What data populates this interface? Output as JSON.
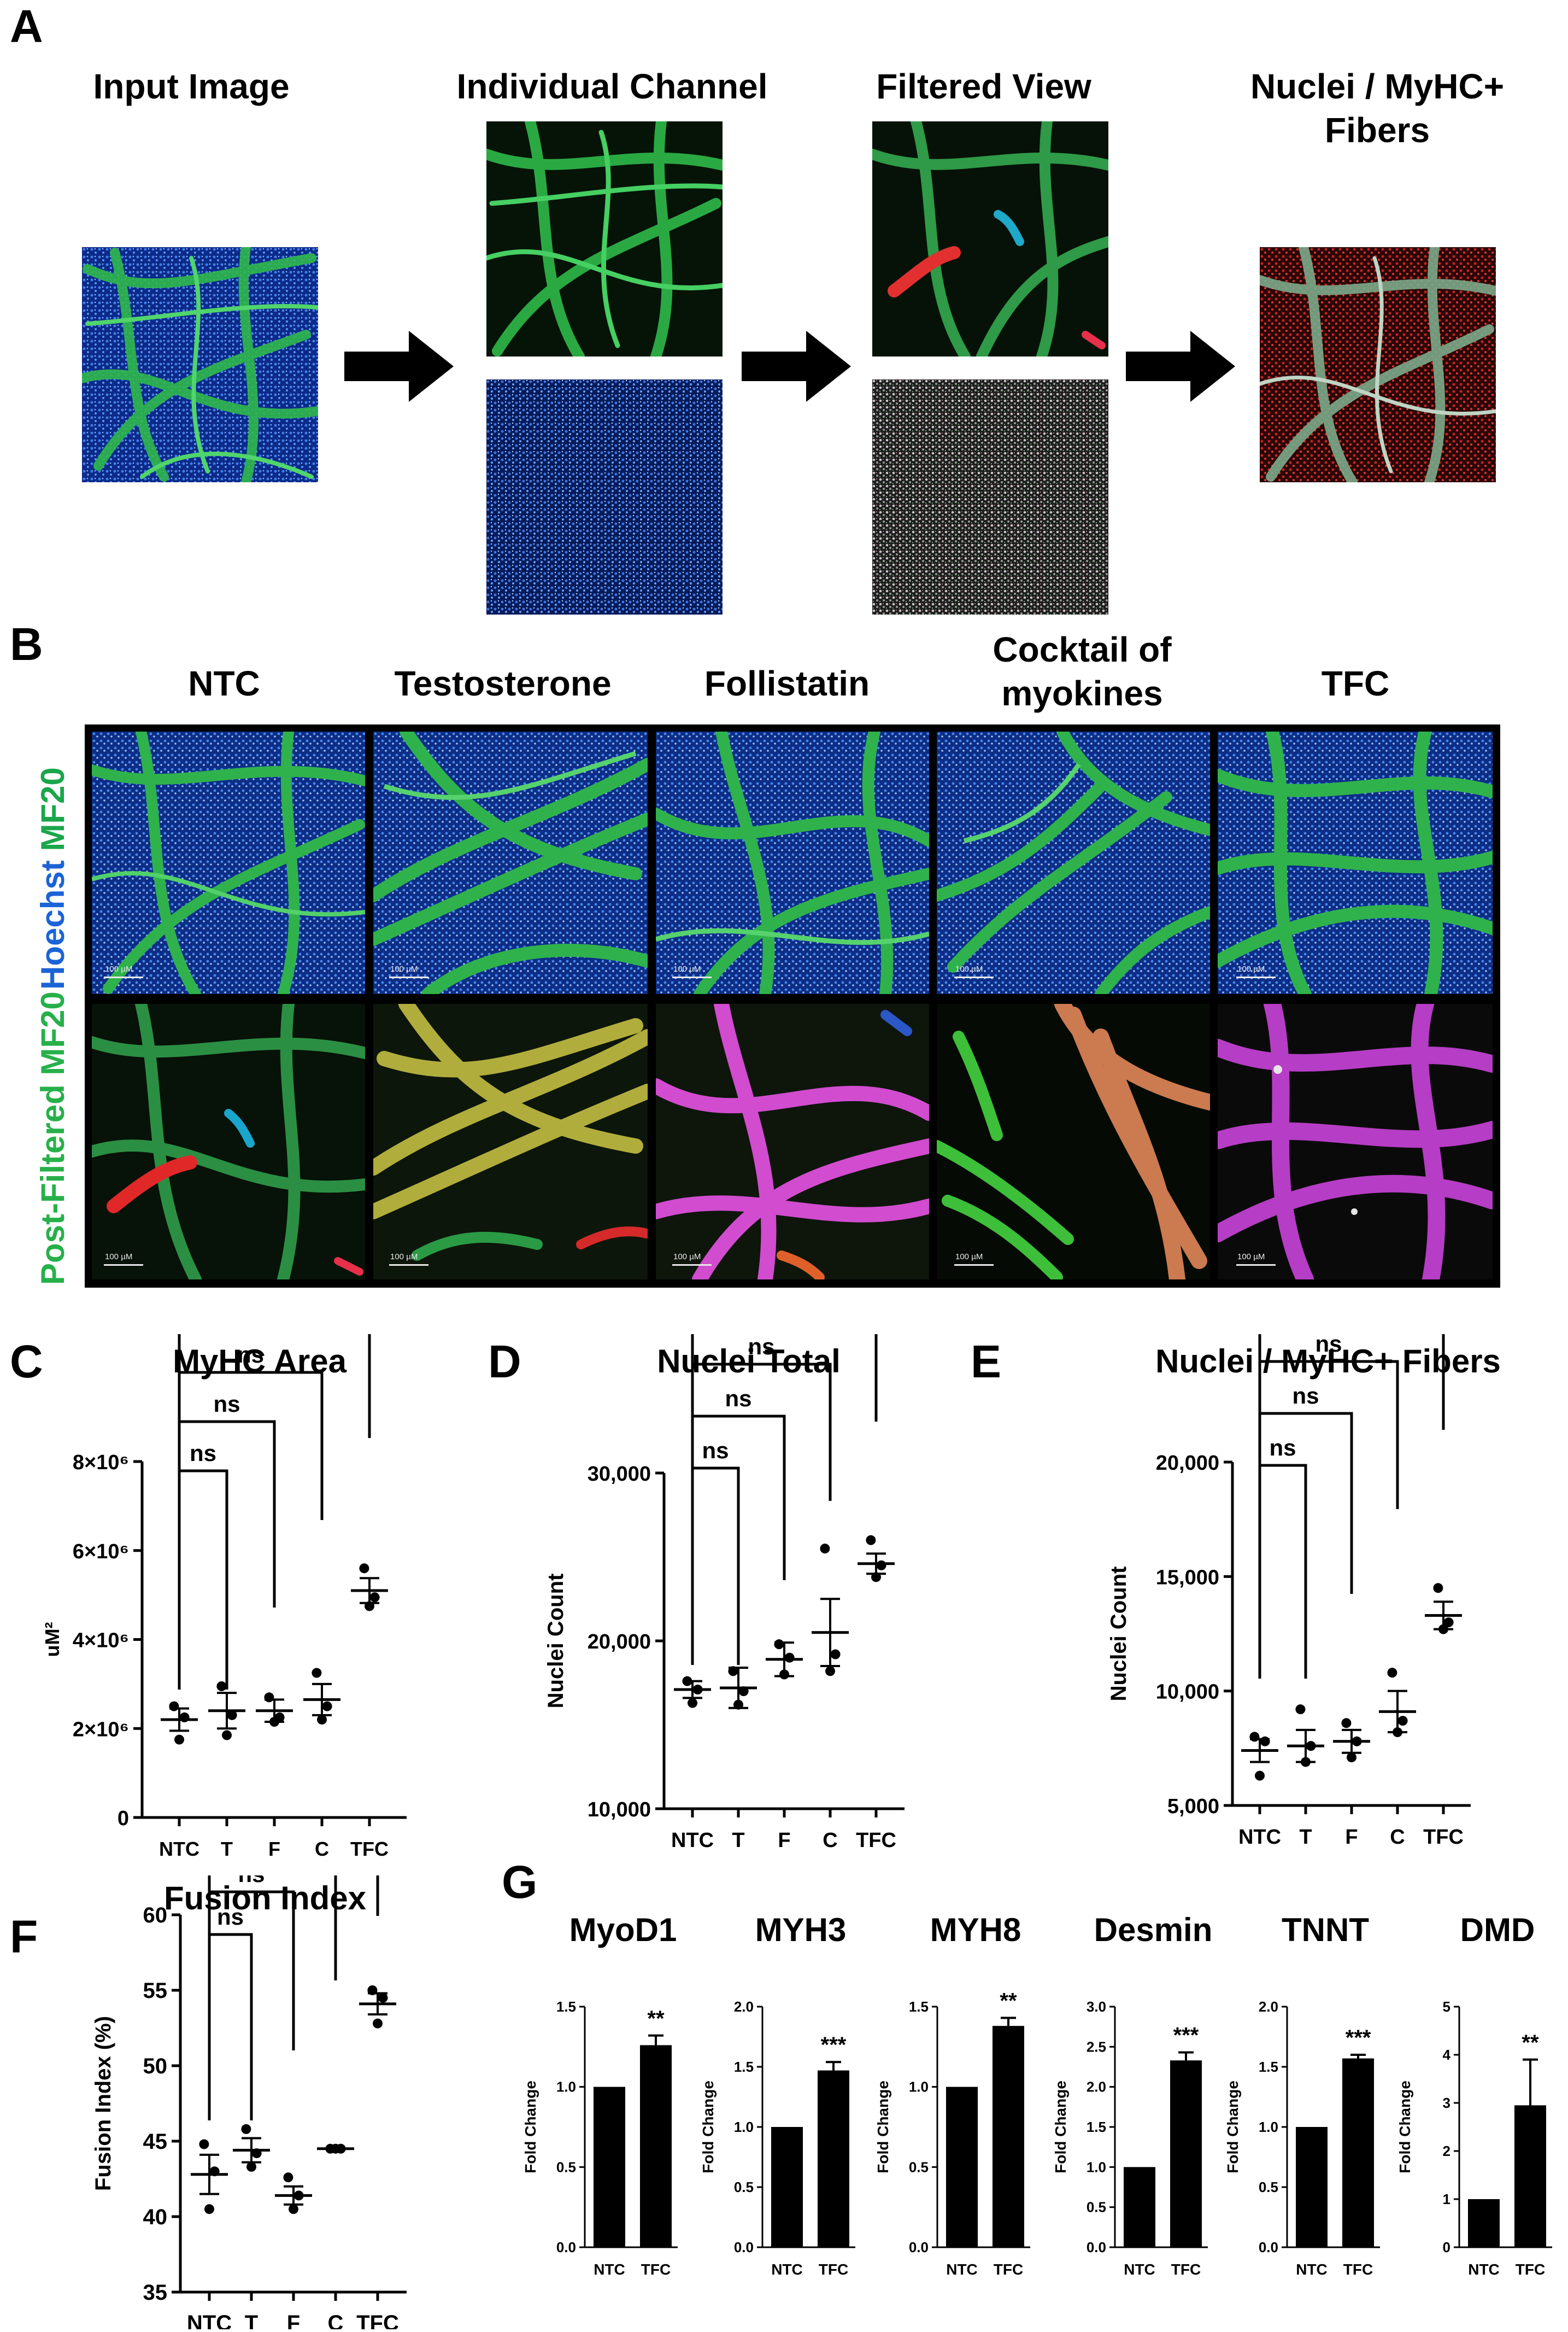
{
  "panel_letters": {
    "A": "A",
    "B": "B",
    "C": "C",
    "D": "D",
    "E": "E",
    "F": "F",
    "G": "G"
  },
  "panelA": {
    "steps": [
      "Input Image",
      "Individual Channel",
      "Filtered View",
      "Nuclei / MyHC+",
      "Fibers"
    ]
  },
  "panelB": {
    "conditions": [
      "NTC",
      "Testosterone",
      "Follistatin",
      "Cocktail of",
      "myokines",
      "TFC"
    ],
    "row_label_top": {
      "part1": "Hoechst",
      "part2": "MF20"
    },
    "row_label_bottom": {
      "part1": "Post-Filtered",
      "part2": "MF20"
    },
    "scale_bar": "100 µM",
    "colors": {
      "hoechst": "#1b63d6",
      "mf20": "#1aa64a",
      "row2_label": "#27b04a"
    }
  },
  "chart_data": [
    {
      "type": "scatter",
      "panel": "C",
      "title": "MyHC Area",
      "ylabel": "uM²",
      "categories": [
        "NTC",
        "T",
        "F",
        "C",
        "TFC"
      ],
      "ylim": [
        0,
        8000000
      ],
      "yticks": [
        "0",
        "2×10⁶",
        "4×10⁶",
        "6×10⁶",
        "8×10⁶"
      ],
      "ytick_values": [
        0,
        2000000,
        4000000,
        6000000,
        8000000
      ],
      "points": [
        [
          2500000,
          1750000,
          2250000
        ],
        [
          2950000,
          1850000,
          2300000
        ],
        [
          2700000,
          2150000,
          2250000
        ],
        [
          3250000,
          2200000,
          2500000
        ],
        [
          5600000,
          4750000,
          4950000
        ]
      ],
      "means": [
        2200000,
        2400000,
        2400000,
        2650000,
        5100000
      ],
      "sem": [
        250000,
        400000,
        250000,
        350000,
        280000
      ],
      "significance": [
        {
          "to": "T",
          "label": "ns"
        },
        {
          "to": "F",
          "label": "ns"
        },
        {
          "to": "C",
          "label": "ns"
        },
        {
          "to": "TFC",
          "label": "***"
        }
      ]
    },
    {
      "type": "scatter",
      "panel": "D",
      "title": "Nuclei Total",
      "ylabel": "Nuclei Count",
      "categories": [
        "NTC",
        "T",
        "F",
        "C",
        "TFC"
      ],
      "ylim": [
        10000,
        30000
      ],
      "yticks": [
        "10,000",
        "20,000",
        "30,000"
      ],
      "ytick_values": [
        10000,
        20000,
        30000
      ],
      "points": [
        [
          17600,
          16300,
          17100
        ],
        [
          18200,
          16200,
          17000
        ],
        [
          19800,
          18000,
          19000
        ],
        [
          25500,
          18200,
          19200
        ],
        [
          26000,
          23800,
          24500
        ]
      ],
      "means": [
        17100,
        17200,
        18900,
        20500,
        24600
      ],
      "sem": [
        500,
        1200,
        1000,
        2000,
        600
      ],
      "significance": [
        {
          "to": "T",
          "label": "ns"
        },
        {
          "to": "F",
          "label": "ns"
        },
        {
          "to": "C",
          "label": "ns"
        },
        {
          "to": "TFC",
          "label": "**"
        }
      ]
    },
    {
      "type": "scatter",
      "panel": "E",
      "title": "Nuclei / MyHC+ Fibers",
      "ylabel": "Nuclei Count",
      "categories": [
        "NTC",
        "T",
        "F",
        "C",
        "TFC"
      ],
      "ylim": [
        5000,
        20000
      ],
      "yticks": [
        "5,000",
        "10,000",
        "15,000",
        "20,000"
      ],
      "ytick_values": [
        5000,
        10000,
        15000,
        20000
      ],
      "points": [
        [
          8000,
          6300,
          7800
        ],
        [
          9200,
          6900,
          7600
        ],
        [
          8600,
          7100,
          7800
        ],
        [
          10800,
          8200,
          8700
        ],
        [
          14500,
          12700,
          13000
        ]
      ],
      "means": [
        7400,
        7600,
        7800,
        9100,
        13300
      ],
      "sem": [
        500,
        700,
        500,
        900,
        600
      ],
      "significance": [
        {
          "to": "T",
          "label": "ns"
        },
        {
          "to": "F",
          "label": "ns"
        },
        {
          "to": "C",
          "label": "ns"
        },
        {
          "to": "TFC",
          "label": "***"
        }
      ]
    },
    {
      "type": "scatter",
      "panel": "F",
      "title": "Fusion Index",
      "ylabel": "Fusion Index (%)",
      "categories": [
        "NTC",
        "T",
        "F",
        "C",
        "TFC"
      ],
      "ylim": [
        35,
        60
      ],
      "yticks": [
        "35",
        "40",
        "45",
        "50",
        "55",
        "60"
      ],
      "ytick_values": [
        35,
        40,
        45,
        50,
        55,
        60
      ],
      "points": [
        [
          44.8,
          40.5,
          43.0
        ],
        [
          45.8,
          43.3,
          44.2
        ],
        [
          42.6,
          40.5,
          41.4
        ],
        [
          44.5,
          44.5,
          44.5
        ],
        [
          55.0,
          52.8,
          54.5
        ]
      ],
      "means": [
        42.8,
        44.4,
        41.4,
        44.5,
        54.1
      ],
      "sem": [
        1.3,
        0.8,
        0.6,
        0.05,
        0.7
      ],
      "significance": [
        {
          "to": "T",
          "label": "ns"
        },
        {
          "to": "F",
          "label": "ns"
        },
        {
          "to": "C",
          "label": "ns"
        },
        {
          "to": "TFC",
          "label": "***"
        }
      ]
    },
    {
      "type": "bar",
      "panel": "G",
      "title": "MyoD1",
      "ylabel": "Fold Change",
      "categories": [
        "NTC",
        "TFC"
      ],
      "values": [
        1.0,
        1.26
      ],
      "err": [
        0,
        0.06
      ],
      "ylim": [
        0,
        1.5
      ],
      "yticks": [
        "0.0",
        "0.5",
        "1.0",
        "1.5"
      ],
      "ytick_values": [
        0,
        0.5,
        1.0,
        1.5
      ],
      "sig": "**"
    },
    {
      "type": "bar",
      "panel": "G",
      "title": "MYH3",
      "ylabel": "Fold Change",
      "categories": [
        "NTC",
        "TFC"
      ],
      "values": [
        1.0,
        1.47
      ],
      "err": [
        0,
        0.07
      ],
      "ylim": [
        0,
        2.0
      ],
      "yticks": [
        "0.0",
        "0.5",
        "1.0",
        "1.5",
        "2.0"
      ],
      "ytick_values": [
        0,
        0.5,
        1.0,
        1.5,
        2.0
      ],
      "sig": "***"
    },
    {
      "type": "bar",
      "panel": "G",
      "title": "MYH8",
      "ylabel": "Fold Change",
      "categories": [
        "NTC",
        "TFC"
      ],
      "values": [
        1.0,
        1.38
      ],
      "err": [
        0,
        0.05
      ],
      "ylim": [
        0,
        1.5
      ],
      "yticks": [
        "0.0",
        "0.5",
        "1.0",
        "1.5"
      ],
      "ytick_values": [
        0,
        0.5,
        1.0,
        1.5
      ],
      "sig": "**"
    },
    {
      "type": "bar",
      "panel": "G",
      "title": "Desmin",
      "ylabel": "Fold Change",
      "categories": [
        "NTC",
        "TFC"
      ],
      "values": [
        1.0,
        2.33
      ],
      "err": [
        0,
        0.1
      ],
      "ylim": [
        0,
        3.0
      ],
      "yticks": [
        "0.0",
        "0.5",
        "1.0",
        "1.5",
        "2.0",
        "2.5",
        "3.0"
      ],
      "ytick_values": [
        0,
        0.5,
        1.0,
        1.5,
        2.0,
        2.5,
        3.0
      ],
      "sig": "***"
    },
    {
      "type": "bar",
      "panel": "G",
      "title": "TNNT",
      "ylabel": "Fold Change",
      "categories": [
        "NTC",
        "TFC"
      ],
      "values": [
        1.0,
        1.57
      ],
      "err": [
        0,
        0.03
      ],
      "ylim": [
        0,
        2.0
      ],
      "yticks": [
        "0.0",
        "0.5",
        "1.0",
        "1.5",
        "2.0"
      ],
      "ytick_values": [
        0,
        0.5,
        1.0,
        1.5,
        2.0
      ],
      "sig": "***"
    },
    {
      "type": "bar",
      "panel": "G",
      "title": "DMD",
      "ylabel": "Fold Change",
      "categories": [
        "NTC",
        "TFC"
      ],
      "values": [
        1.0,
        2.95
      ],
      "err": [
        0,
        0.95
      ],
      "ylim": [
        0,
        5
      ],
      "yticks": [
        "0",
        "1",
        "2",
        "3",
        "4",
        "5"
      ],
      "ytick_values": [
        0,
        1,
        2,
        3,
        4,
        5
      ],
      "sig": "**"
    }
  ]
}
